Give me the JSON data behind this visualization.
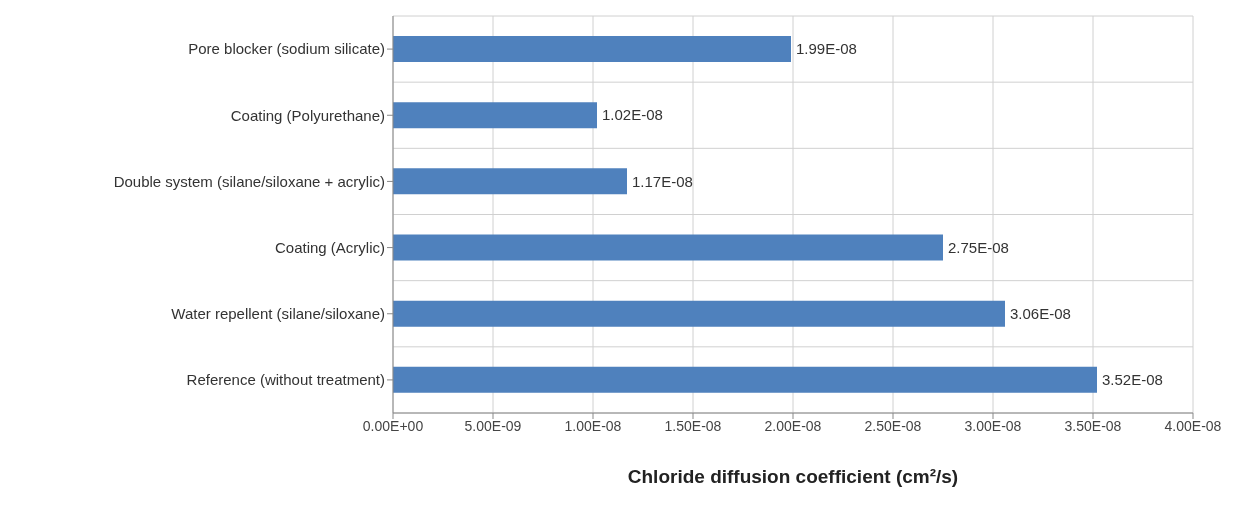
{
  "chart_data": {
    "type": "bar",
    "orientation": "horizontal",
    "xlabel": "Chloride diffusion coefficient (cm²/s)",
    "categories": [
      "Pore blocker (sodium silicate)",
      "Coating (Polyurethane)",
      "Double system (silane/siloxane + acrylic)",
      "Coating (Acrylic)",
      "Water repellent (silane/siloxane)",
      "Reference (without treatment)"
    ],
    "values": [
      1.99e-08,
      1.02e-08,
      1.17e-08,
      2.75e-08,
      3.06e-08,
      3.52e-08
    ],
    "value_labels": [
      "1.99E-08",
      "1.02E-08",
      "1.17E-08",
      "2.75E-08",
      "3.06E-08",
      "3.52E-08"
    ],
    "color": "#4f81bd",
    "xlim": [
      0,
      4e-08
    ],
    "xticks": [
      {
        "value": 0,
        "label": "0.00E+00"
      },
      {
        "value": 5e-09,
        "label": "5.00E-09"
      },
      {
        "value": 1e-08,
        "label": "1.00E-08"
      },
      {
        "value": 1.5e-08,
        "label": "1.50E-08"
      },
      {
        "value": 2e-08,
        "label": "2.00E-08"
      },
      {
        "value": 2.5e-08,
        "label": "2.50E-08"
      },
      {
        "value": 3e-08,
        "label": "3.00E-08"
      },
      {
        "value": 3.5e-08,
        "label": "3.50E-08"
      },
      {
        "value": 4e-08,
        "label": "4.00E-08"
      }
    ],
    "grid": true
  }
}
